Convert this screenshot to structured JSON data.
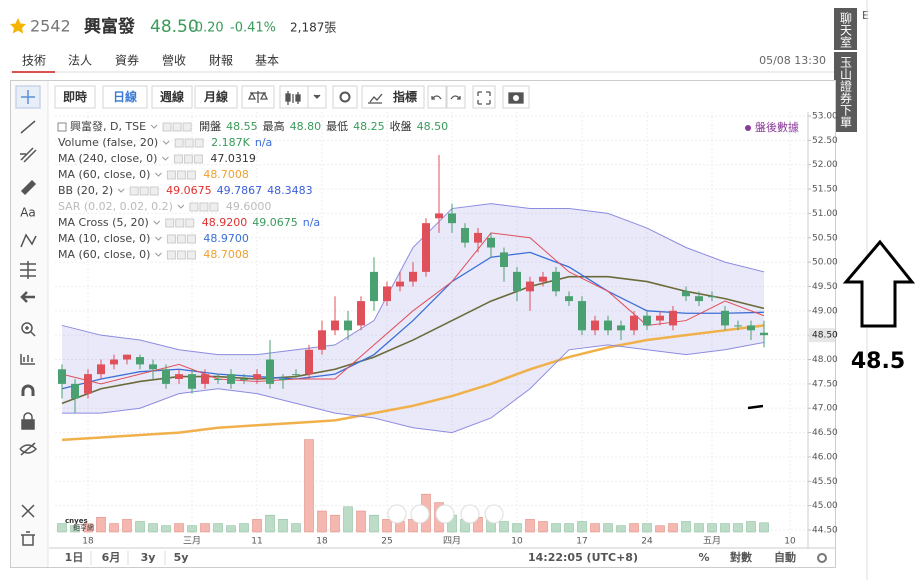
{
  "header": {
    "code": "2542",
    "name": "興富發",
    "price": "48.50",
    "change": "-0.20",
    "pct": "-0.41%",
    "volume": "2,187張",
    "edge": "E"
  },
  "tabs": [
    "技術",
    "法人",
    "資券",
    "營收",
    "財報",
    "基本"
  ],
  "timestamp": "05/08 13:30",
  "side_buttons": [
    "聊天室",
    "玉山證券下單"
  ],
  "toolbar": {
    "live": "即時",
    "daily": "日線",
    "weekly": "週線",
    "monthly": "月線",
    "indicators": "指標"
  },
  "left_tool_text": "Aa",
  "after_hours": "盤後數據",
  "legend": [
    {
      "label": "興富發, D, TSE",
      "values": [
        "開盤",
        "48.55",
        "最高",
        "48.80",
        "最低",
        "48.25",
        "收盤",
        "48.50"
      ],
      "colors": [
        "#333",
        "#3a9a5a",
        "#333",
        "#3a9a5a",
        "#333",
        "#3a9a5a",
        "#333",
        "#3a9a5a"
      ]
    },
    {
      "label": "Volume (false, 20)",
      "values": [
        "2.187K",
        "n/a"
      ],
      "colors": [
        "#3a9a5a",
        "#3b6fd6"
      ]
    },
    {
      "label": "MA (240, close, 0)",
      "values": [
        "47.0319"
      ],
      "colors": [
        "#333"
      ]
    },
    {
      "label": "MA (60, close, 0)",
      "values": [
        "48.7008"
      ],
      "colors": [
        "#f0a030"
      ]
    },
    {
      "label": "BB (20, 2)",
      "values": [
        "49.0675",
        "49.7867",
        "48.3483"
      ],
      "colors": [
        "#e03030",
        "#3b5fd6",
        "#3b5fd6"
      ]
    },
    {
      "label": "SAR (0.02, 0.02, 0.2)",
      "values": [
        "49.6000"
      ],
      "colors": [
        "#bbb"
      ],
      "muted": true
    },
    {
      "label": "MA Cross (5, 20)",
      "values": [
        "48.9200",
        "49.0675",
        "n/a"
      ],
      "colors": [
        "#e03030",
        "#3a9a5a",
        "#3b6fd6"
      ]
    },
    {
      "label": "MA (10, close, 0)",
      "values": [
        "48.9700"
      ],
      "colors": [
        "#3b6fd6"
      ]
    },
    {
      "label": "MA (60, close, 0)",
      "values": [
        "48.7008"
      ],
      "colors": [
        "#f0a030"
      ]
    }
  ],
  "watermark": [
    "cnyes",
    "鉅亨網"
  ],
  "bottom": {
    "ranges": [
      "1日",
      "6月",
      "3y",
      "5y"
    ],
    "clock": "14:22:05 (UTC+8)",
    "percent": "%",
    "log": "對數",
    "auto": "自動"
  },
  "annotation": "48.5",
  "chart_data": {
    "type": "candlestick",
    "categories": [
      null,
      null,
      "18",
      null,
      null,
      null,
      null,
      null,
      null,
      null,
      "三月",
      null,
      null,
      null,
      null,
      "11",
      null,
      null,
      null,
      null,
      "18",
      null,
      null,
      null,
      null,
      "25",
      null,
      null,
      null,
      null,
      "四月",
      null,
      null,
      null,
      null,
      "10",
      null,
      null,
      null,
      null,
      "17",
      null,
      null,
      null,
      null,
      "24",
      null,
      null,
      null,
      null,
      "五月",
      null,
      null,
      null,
      null,
      null,
      "10"
    ],
    "open": [
      47.8,
      47.5,
      47.3,
      47.7,
      47.9,
      48.0,
      48.05,
      47.9,
      47.8,
      47.6,
      47.7,
      47.5,
      47.6,
      47.7,
      47.6,
      47.6,
      48.0,
      47.6,
      47.7,
      47.7,
      48.2,
      48.6,
      48.8,
      48.7,
      49.8,
      49.2,
      49.5,
      49.6,
      49.8,
      50.9,
      51.0,
      50.7,
      50.4,
      50.5,
      50.2,
      49.8,
      49.4,
      49.6,
      49.8,
      49.3,
      49.2,
      48.6,
      48.8,
      48.7,
      48.6,
      48.9,
      48.8,
      48.7,
      49.4,
      49.3,
      49.3,
      49.0,
      48.7,
      48.7,
      48.55,
      null,
      null
    ],
    "high": [
      47.9,
      47.6,
      47.8,
      48.0,
      48.1,
      48.1,
      48.1,
      48.0,
      47.9,
      47.8,
      47.8,
      47.8,
      47.7,
      47.8,
      47.7,
      47.8,
      48.4,
      47.7,
      47.8,
      48.3,
      48.8,
      49.3,
      49.0,
      49.3,
      50.1,
      49.6,
      49.8,
      50.0,
      50.9,
      52.2,
      51.2,
      50.8,
      50.7,
      50.6,
      50.3,
      49.9,
      49.7,
      49.8,
      49.9,
      49.4,
      49.3,
      48.9,
      48.9,
      48.8,
      49.0,
      49.0,
      49.0,
      49.1,
      49.5,
      49.4,
      49.4,
      49.1,
      48.8,
      48.8,
      48.8,
      null,
      null
    ],
    "low": [
      47.2,
      46.9,
      47.2,
      47.6,
      47.8,
      47.9,
      47.8,
      47.6,
      47.4,
      47.5,
      47.3,
      47.4,
      47.5,
      47.4,
      47.5,
      47.5,
      47.4,
      47.4,
      47.6,
      47.6,
      48.1,
      48.5,
      48.4,
      48.6,
      49.0,
      49.1,
      49.4,
      49.5,
      49.7,
      50.6,
      50.6,
      50.3,
      50.2,
      50.1,
      49.6,
      49.2,
      49.0,
      49.5,
      49.3,
      49.1,
      48.5,
      48.5,
      48.5,
      48.4,
      48.5,
      48.6,
      48.7,
      48.6,
      49.2,
      49.1,
      49.2,
      48.6,
      48.6,
      48.4,
      48.25,
      null,
      null
    ],
    "close": [
      47.5,
      47.2,
      47.7,
      47.9,
      48.0,
      48.1,
      47.9,
      47.8,
      47.5,
      47.7,
      47.4,
      47.7,
      47.6,
      47.5,
      47.6,
      47.7,
      47.5,
      47.6,
      47.7,
      48.2,
      48.6,
      48.8,
      48.6,
      49.2,
      49.2,
      49.5,
      49.6,
      49.8,
      50.8,
      51.0,
      50.8,
      50.4,
      50.6,
      50.3,
      49.9,
      49.4,
      49.6,
      49.7,
      49.4,
      49.2,
      48.6,
      48.8,
      48.6,
      48.6,
      48.9,
      48.7,
      48.9,
      49.0,
      49.3,
      49.2,
      49.3,
      48.7,
      48.7,
      48.6,
      48.5,
      null,
      null
    ],
    "volume": [
      2,
      1.5,
      2,
      3.5,
      2,
      3,
      2.5,
      2,
      1.5,
      2,
      1.5,
      2,
      2,
      1.5,
      2,
      3,
      4,
      3,
      2,
      22,
      5,
      4,
      6,
      5,
      4,
      3,
      2.5,
      3,
      9,
      7,
      4,
      3,
      3.5,
      3,
      2.5,
      2,
      3,
      2.5,
      2,
      2,
      2.5,
      2,
      2,
      1.5,
      2,
      2,
      1.5,
      2,
      2.5,
      2,
      2,
      2,
      2,
      2.5,
      2.187,
      null,
      null
    ],
    "vlim": [
      0,
      25
    ],
    "up_color": "#e0505a",
    "down_color": "#4aa070",
    "up_volume_color": "#f4b8b0",
    "down_volume_color": "#bcdcc8",
    "overlay_x": [
      0,
      3,
      6,
      9,
      12,
      15,
      18,
      21,
      24,
      27,
      30,
      33,
      36,
      39,
      42,
      45,
      48,
      51,
      54
    ],
    "overlays": [
      {
        "color": "#f0b04a",
        "width": 2.5,
        "values": [
          46.35,
          46.4,
          46.45,
          46.5,
          46.6,
          46.65,
          46.7,
          46.75,
          46.9,
          47.05,
          47.25,
          47.5,
          47.8,
          48.05,
          48.25,
          48.4,
          48.5,
          48.6,
          48.7
        ]
      },
      {
        "color": "#6b6b3a",
        "width": 1.6,
        "values": [
          47.1,
          47.4,
          47.55,
          47.65,
          47.65,
          47.6,
          47.65,
          47.8,
          48.05,
          48.4,
          48.8,
          49.2,
          49.5,
          49.7,
          49.7,
          49.6,
          49.4,
          49.25,
          49.05
        ]
      },
      {
        "color": "#3b6fd6",
        "width": 1.3,
        "values": [
          47.4,
          47.6,
          47.75,
          47.8,
          47.7,
          47.65,
          47.6,
          47.7,
          48.1,
          48.8,
          49.6,
          50.1,
          50.2,
          49.9,
          49.4,
          49.0,
          48.95,
          48.95,
          48.97
        ]
      },
      {
        "color": "#e0505a",
        "width": 1,
        "values": [
          47.7,
          47.5,
          47.7,
          47.9,
          47.6,
          47.55,
          47.6,
          47.6,
          48.3,
          49.0,
          49.6,
          50.6,
          50.5,
          49.8,
          49.4,
          48.7,
          48.8,
          49.2,
          48.9
        ]
      },
      {
        "color": "#8c8ce0",
        "width": 1,
        "band": "upper",
        "values": [
          48.7,
          48.5,
          48.4,
          48.2,
          48.1,
          48.1,
          48.2,
          48.3,
          48.8,
          50.3,
          51.1,
          51.2,
          51.1,
          51.1,
          51.0,
          50.7,
          50.3,
          50.0,
          49.8
        ]
      },
      {
        "color": "#8c8ce0",
        "width": 1,
        "band": "lower",
        "values": [
          46.9,
          46.9,
          47.0,
          47.3,
          47.4,
          47.3,
          47.1,
          46.9,
          46.8,
          46.6,
          46.5,
          46.8,
          47.4,
          48.2,
          48.3,
          48.2,
          48.1,
          48.2,
          48.35
        ]
      }
    ],
    "band_fill": "rgba(120,120,220,0.16)",
    "ylim": [
      44.5,
      53.0
    ],
    "yticks": [
      {
        "value": 44.5,
        "label": "44.50"
      },
      {
        "value": 45,
        "label": "45.00"
      },
      {
        "value": 45.5,
        "label": "45.50"
      },
      {
        "value": 46,
        "label": "46.00"
      },
      {
        "value": 46.5,
        "label": "46.50"
      },
      {
        "value": 47,
        "label": "47.00"
      },
      {
        "value": 47.5,
        "label": "47.50"
      },
      {
        "value": 48,
        "label": "48.00"
      },
      {
        "value": 48.5,
        "label": "48.50"
      },
      {
        "value": 49,
        "label": "49.00"
      },
      {
        "value": 49.5,
        "label": "49.50"
      },
      {
        "value": 50,
        "label": "50.00"
      },
      {
        "value": 50.5,
        "label": "50.50"
      },
      {
        "value": 51,
        "label": "51.00"
      },
      {
        "value": 51.5,
        "label": "51.50"
      },
      {
        "value": 52,
        "label": "52.00"
      },
      {
        "value": 52.5,
        "label": "52.50"
      },
      {
        "value": 53,
        "label": "53.00"
      }
    ],
    "last_price": {
      "value": 48.5,
      "label": "48.50"
    },
    "grid": true
  }
}
